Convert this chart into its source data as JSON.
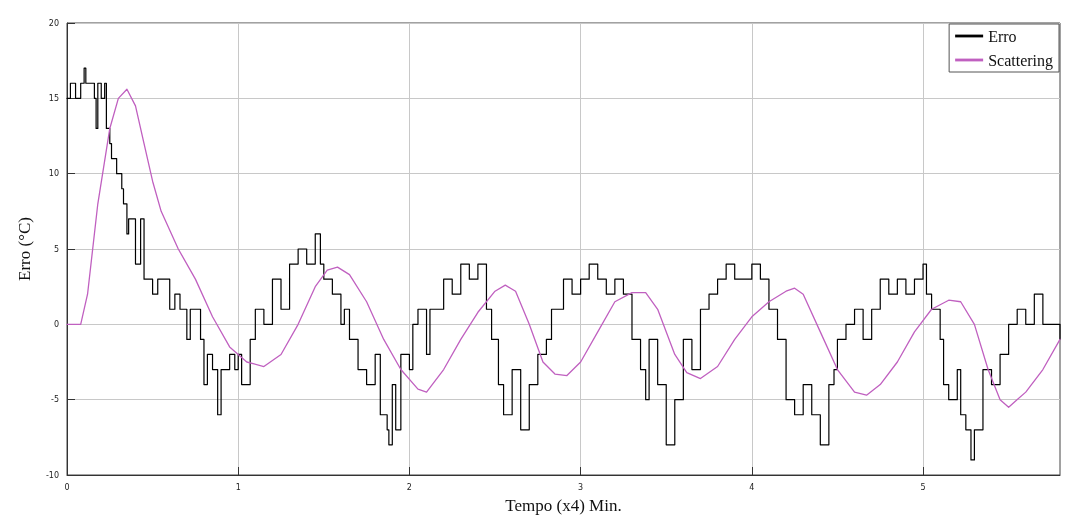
{
  "chart_data": {
    "type": "line",
    "xlabel": "Tempo (x4) Min.",
    "ylabel": "Erro (°C)",
    "xlim": [
      0,
      5.8
    ],
    "xticks": [
      0,
      1,
      2,
      3,
      4,
      5
    ],
    "ylim": [
      -10,
      20
    ],
    "yticks": [
      -10,
      -5,
      0,
      5,
      10,
      15,
      20
    ],
    "grid": true,
    "legend": "top right",
    "marker": "none",
    "line_style": "solid",
    "series": [
      {
        "name": "Erro",
        "type": "step",
        "color": "#000000",
        "x": [
          0,
          0.02,
          0.05,
          0.08,
          0.1,
          0.11,
          0.14,
          0.16,
          0.17,
          0.18,
          0.2,
          0.22,
          0.23,
          0.25,
          0.26,
          0.29,
          0.32,
          0.33,
          0.35,
          0.36,
          0.4,
          0.43,
          0.45,
          0.5,
          0.53,
          0.6,
          0.63,
          0.66,
          0.7,
          0.72,
          0.78,
          0.8,
          0.82,
          0.85,
          0.88,
          0.9,
          0.95,
          0.98,
          1.0,
          1.02,
          1.07,
          1.1,
          1.15,
          1.2,
          1.25,
          1.3,
          1.35,
          1.4,
          1.45,
          1.48,
          1.5,
          1.55,
          1.6,
          1.62,
          1.65,
          1.7,
          1.75,
          1.8,
          1.83,
          1.87,
          1.88,
          1.9,
          1.92,
          1.95,
          2.0,
          2.02,
          2.05,
          2.1,
          2.12,
          2.2,
          2.25,
          2.3,
          2.35,
          2.4,
          2.45,
          2.48,
          2.52,
          2.55,
          2.6,
          2.65,
          2.7,
          2.75,
          2.8,
          2.83,
          2.9,
          2.95,
          3.0,
          3.05,
          3.1,
          3.15,
          3.2,
          3.25,
          3.3,
          3.35,
          3.38,
          3.4,
          3.45,
          3.5,
          3.55,
          3.6,
          3.65,
          3.7,
          3.75,
          3.8,
          3.85,
          3.9,
          4.0,
          4.05,
          4.1,
          4.15,
          4.2,
          4.25,
          4.3,
          4.35,
          4.4,
          4.45,
          4.48,
          4.5,
          4.55,
          4.6,
          4.65,
          4.7,
          4.75,
          4.8,
          4.85,
          4.9,
          4.95,
          5.0,
          5.02,
          5.05,
          5.1,
          5.12,
          5.15,
          5.2,
          5.22,
          5.25,
          5.28,
          5.3,
          5.35,
          5.4,
          5.45,
          5.5,
          5.55,
          5.6,
          5.65,
          5.7,
          5.8
        ],
        "values": [
          15,
          16,
          15,
          16,
          17,
          16,
          16,
          15,
          13,
          16,
          15,
          16,
          13,
          12,
          11,
          10,
          9,
          8,
          6,
          7,
          4,
          7,
          3,
          2,
          3,
          1,
          2,
          1,
          -1,
          1,
          -1,
          -4,
          -2,
          -3,
          -6,
          -3,
          -2,
          -3,
          -2,
          -4,
          -1,
          1,
          0,
          3,
          1,
          4,
          5,
          4,
          6,
          4,
          3,
          2,
          0,
          1,
          -1,
          -3,
          -4,
          -2,
          -6,
          -7,
          -8,
          -4,
          -7,
          -2,
          -3,
          0,
          1,
          -2,
          1,
          3,
          2,
          4,
          3,
          4,
          1,
          -1,
          -4,
          -6,
          -3,
          -7,
          -4,
          -2,
          -1,
          1,
          3,
          2,
          3,
          4,
          3,
          2,
          3,
          2,
          -1,
          -3,
          -5,
          -1,
          -4,
          -8,
          -5,
          -1,
          -3,
          1,
          2,
          3,
          4,
          3,
          4,
          3,
          1,
          -1,
          -5,
          -6,
          -4,
          -6,
          -8,
          -4,
          -3,
          -1,
          0,
          1,
          -1,
          1,
          3,
          2,
          3,
          2,
          3,
          4,
          2,
          1,
          -1,
          -4,
          -5,
          -3,
          -6,
          -7,
          -9,
          -7,
          -3,
          -4,
          -2,
          0,
          1,
          0,
          2,
          0,
          -1
        ]
      },
      {
        "name": "Scattering",
        "color": "#c060c0",
        "x": [
          0,
          0.08,
          0.12,
          0.18,
          0.25,
          0.3,
          0.35,
          0.4,
          0.45,
          0.5,
          0.55,
          0.65,
          0.75,
          0.85,
          0.95,
          1.05,
          1.15,
          1.25,
          1.35,
          1.45,
          1.52,
          1.58,
          1.65,
          1.75,
          1.85,
          1.95,
          2.05,
          2.1,
          2.2,
          2.3,
          2.4,
          2.5,
          2.56,
          2.62,
          2.7,
          2.78,
          2.85,
          2.92,
          3.0,
          3.1,
          3.2,
          3.3,
          3.38,
          3.45,
          3.55,
          3.62,
          3.7,
          3.8,
          3.9,
          4.0,
          4.1,
          4.2,
          4.25,
          4.3,
          4.4,
          4.5,
          4.6,
          4.67,
          4.75,
          4.85,
          4.95,
          5.05,
          5.15,
          5.22,
          5.3,
          5.38,
          5.45,
          5.5,
          5.6,
          5.7,
          5.8
        ],
        "values": [
          0,
          0,
          2,
          8,
          13,
          15,
          15.6,
          14.5,
          12,
          9.5,
          7.5,
          5,
          3,
          0.5,
          -1.5,
          -2.5,
          -2.8,
          -2,
          0,
          2.5,
          3.6,
          3.8,
          3.3,
          1.5,
          -1,
          -3,
          -4.3,
          -4.5,
          -3,
          -1,
          0.8,
          2.2,
          2.6,
          2.2,
          0,
          -2.5,
          -3.3,
          -3.4,
          -2.5,
          -0.5,
          1.5,
          2.1,
          2.1,
          1,
          -2,
          -3.2,
          -3.6,
          -2.8,
          -1,
          0.5,
          1.5,
          2.2,
          2.4,
          2,
          -0.5,
          -3,
          -4.5,
          -4.7,
          -4,
          -2.5,
          -0.5,
          1,
          1.6,
          1.5,
          0,
          -3,
          -5,
          -5.5,
          -4.5,
          -3,
          -1
        ]
      }
    ]
  }
}
